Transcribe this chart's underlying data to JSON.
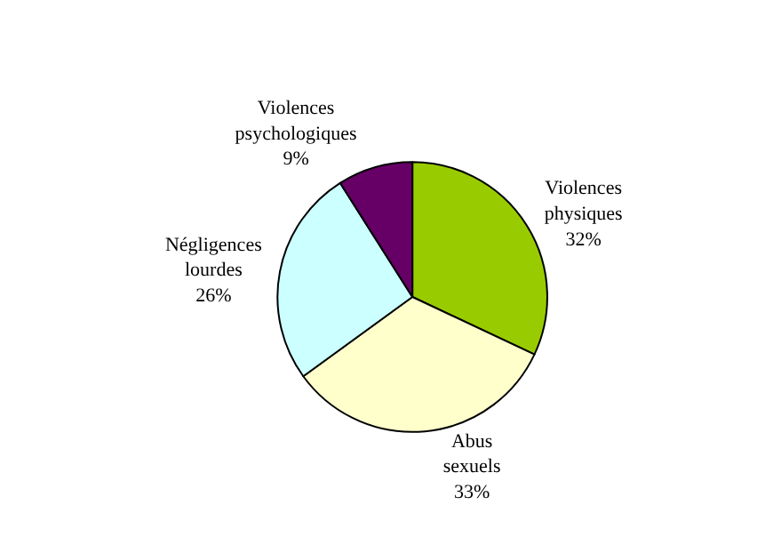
{
  "chart_data": {
    "type": "pie",
    "categories": [
      "Violences physiques",
      "Abus sexuels",
      "Négligences lourdes",
      "Violences psychologiques"
    ],
    "values": [
      32,
      33,
      26,
      9
    ],
    "value_labels": [
      "32%",
      "33%",
      "26%",
      "9%"
    ],
    "colors": [
      "#99cc00",
      "#ffffcc",
      "#ccffff",
      "#660066"
    ],
    "legend": false
  }
}
